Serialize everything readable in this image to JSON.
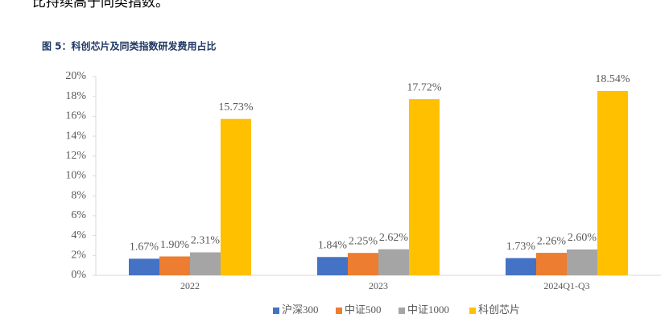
{
  "intro_text": "比持续高于同类指数。",
  "chart_data": {
    "type": "bar",
    "title": "图 5：科创芯片及同类指数研发费用占比",
    "categories": [
      "2022",
      "2023",
      "2024Q1-Q3"
    ],
    "series": [
      {
        "name": "沪深300",
        "color": "#4472c4",
        "values": [
          1.67,
          1.84,
          1.73
        ],
        "value_labels": [
          "1.67%",
          "1.84%",
          "1.73%"
        ]
      },
      {
        "name": "中证500",
        "color": "#ed7d31",
        "values": [
          1.9,
          2.25,
          2.26
        ],
        "value_labels": [
          "1.90%",
          "2.25%",
          "2.26%"
        ]
      },
      {
        "name": "中证1000",
        "color": "#a5a5a5",
        "values": [
          2.31,
          2.62,
          2.6
        ],
        "value_labels": [
          "2.31%",
          "2.62%",
          "2.60%"
        ]
      },
      {
        "name": "科创芯片",
        "color": "#ffc000",
        "values": [
          15.73,
          17.72,
          18.54
        ],
        "value_labels": [
          "15.73%",
          "17.72%",
          "18.54%"
        ]
      }
    ],
    "ylim": [
      0,
      20
    ],
    "yticks": [
      {
        "value": 0,
        "label": "0%"
      },
      {
        "value": 2,
        "label": "2%"
      },
      {
        "value": 4,
        "label": "4%"
      },
      {
        "value": 6,
        "label": "6%"
      },
      {
        "value": 8,
        "label": "8%"
      },
      {
        "value": 10,
        "label": "10%"
      },
      {
        "value": 12,
        "label": "12%"
      },
      {
        "value": 14,
        "label": "14%"
      },
      {
        "value": 16,
        "label": "16%"
      },
      {
        "value": 18,
        "label": "18%"
      },
      {
        "value": 20,
        "label": "20%"
      }
    ],
    "grid": false,
    "legend": "bottom"
  }
}
